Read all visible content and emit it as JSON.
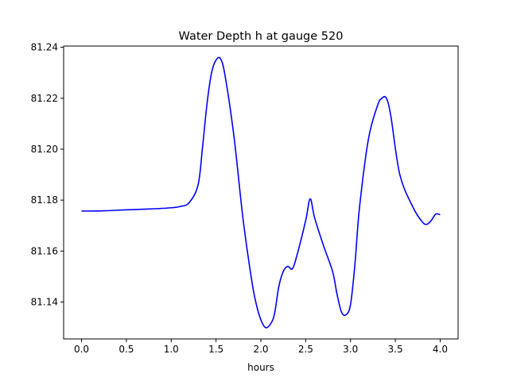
{
  "chart_data": {
    "type": "line",
    "title": "Water Depth h at gauge 520",
    "xlabel": "hours",
    "ylabel": "",
    "xlim": [
      -0.2,
      4.2
    ],
    "ylim": [
      81.1255,
      81.2405
    ],
    "xticks": [
      0.0,
      0.5,
      1.0,
      1.5,
      2.0,
      2.5,
      3.0,
      3.5,
      4.0
    ],
    "xtick_labels": [
      "0.0",
      "0.5",
      "1.0",
      "1.5",
      "2.0",
      "2.5",
      "3.0",
      "3.5",
      "4.0"
    ],
    "yticks": [
      81.14,
      81.16,
      81.18,
      81.2,
      81.22,
      81.24
    ],
    "ytick_labels": [
      "81.14",
      "81.16",
      "81.18",
      "81.20",
      "81.22",
      "81.24"
    ],
    "grid": false,
    "series": [
      {
        "color": "#0000ff",
        "x": [
          0.0,
          0.25,
          0.5,
          0.75,
          1.0,
          1.1,
          1.2,
          1.3,
          1.35,
          1.4,
          1.45,
          1.5,
          1.55,
          1.6,
          1.7,
          1.8,
          1.9,
          1.95,
          2.0,
          2.05,
          2.1,
          2.15,
          2.2,
          2.25,
          2.3,
          2.35,
          2.4,
          2.5,
          2.55,
          2.6,
          2.7,
          2.8,
          2.85,
          2.9,
          2.95,
          3.0,
          3.05,
          3.1,
          3.2,
          3.3,
          3.35,
          3.4,
          3.45,
          3.55,
          3.7,
          3.8,
          3.85,
          3.9,
          3.95,
          4.0
        ],
        "y": [
          81.1757,
          81.1758,
          81.1762,
          81.1765,
          81.177,
          81.1775,
          81.179,
          81.186,
          81.201,
          81.218,
          81.23,
          81.235,
          81.2355,
          81.229,
          81.205,
          81.173,
          81.148,
          81.139,
          81.133,
          81.13,
          81.131,
          81.135,
          81.146,
          81.152,
          81.154,
          81.153,
          81.158,
          81.172,
          81.1805,
          81.173,
          81.162,
          81.152,
          81.143,
          81.136,
          81.135,
          81.139,
          81.155,
          81.177,
          81.204,
          81.217,
          81.22,
          81.22,
          81.213,
          81.19,
          81.177,
          81.1715,
          81.1705,
          81.172,
          81.1745,
          81.1743
        ]
      }
    ]
  }
}
